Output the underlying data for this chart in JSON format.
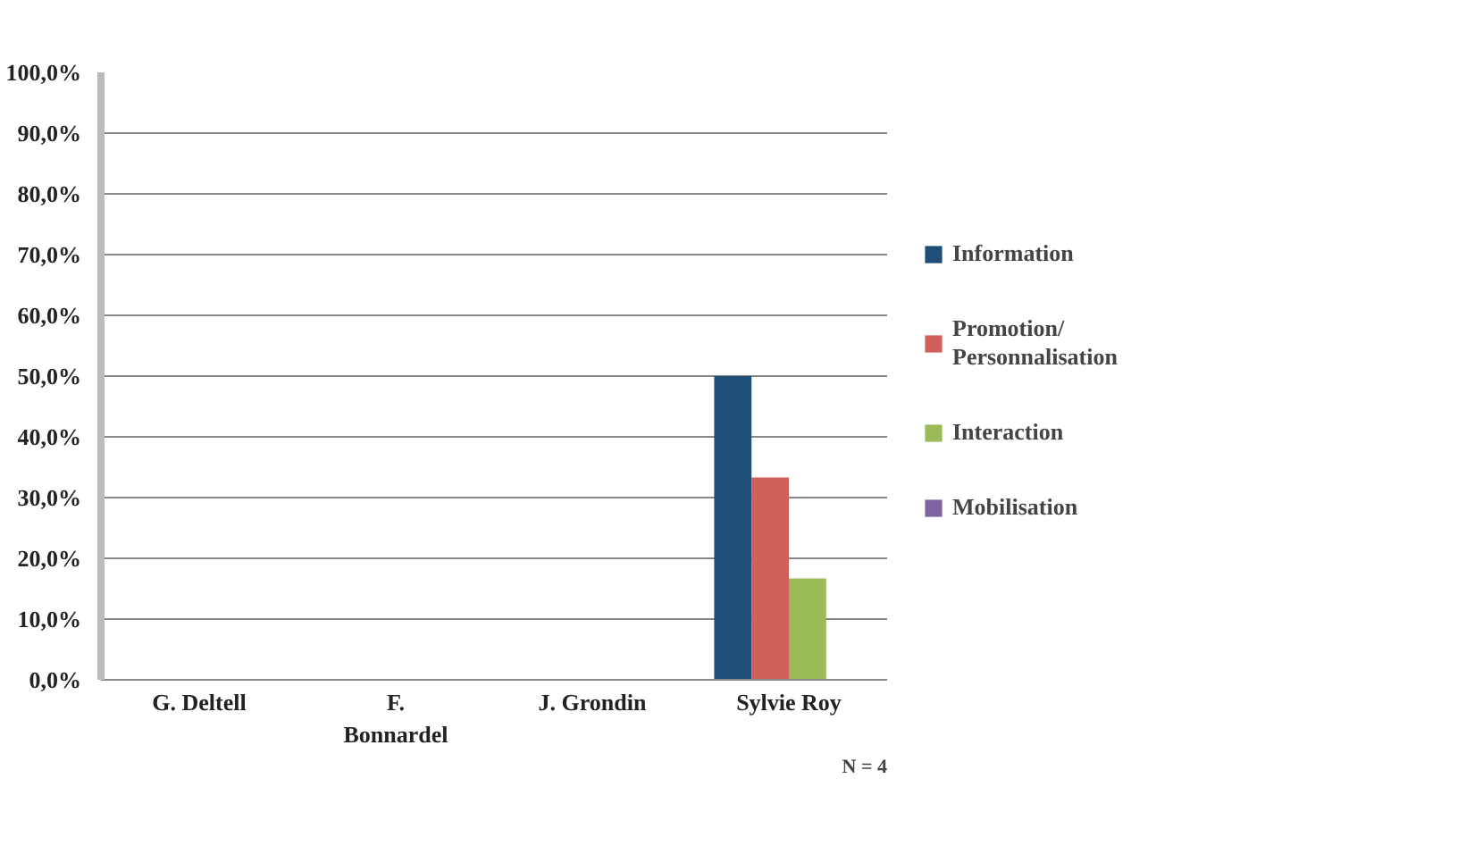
{
  "chart_data": {
    "type": "bar",
    "categories": [
      "G. Deltell",
      "F. Bonnardel",
      "J. Grondin",
      "Sylvie Roy"
    ],
    "series": [
      {
        "name": "Information",
        "color": "#1f4e79",
        "values": [
          0,
          0,
          0,
          50
        ]
      },
      {
        "name": "Promotion/ Personnalisation",
        "color": "#d0605a",
        "values": [
          0,
          0,
          0,
          33.3
        ]
      },
      {
        "name": "Interaction",
        "color": "#9bbb59",
        "values": [
          0,
          0,
          0,
          16.7
        ]
      },
      {
        "name": "Mobilisation",
        "color": "#8064a2",
        "values": [
          0,
          0,
          0,
          0
        ]
      }
    ],
    "ylim": [
      0,
      100
    ],
    "yticks": [
      {
        "value": 0,
        "label": "0,0%"
      },
      {
        "value": 10,
        "label": "10,0%"
      },
      {
        "value": 20,
        "label": "20,0%"
      },
      {
        "value": 30,
        "label": "30,0%"
      },
      {
        "value": 40,
        "label": "40,0%"
      },
      {
        "value": 50,
        "label": "50,0%"
      },
      {
        "value": 60,
        "label": "60,0%"
      },
      {
        "value": 70,
        "label": "70,0%"
      },
      {
        "value": 80,
        "label": "80,0%"
      },
      {
        "value": 90,
        "label": "90,0%"
      },
      {
        "value": 100,
        "label": "100,0%"
      }
    ],
    "grid": "y",
    "legend": "right",
    "annotations": [
      "N = 4"
    ]
  }
}
